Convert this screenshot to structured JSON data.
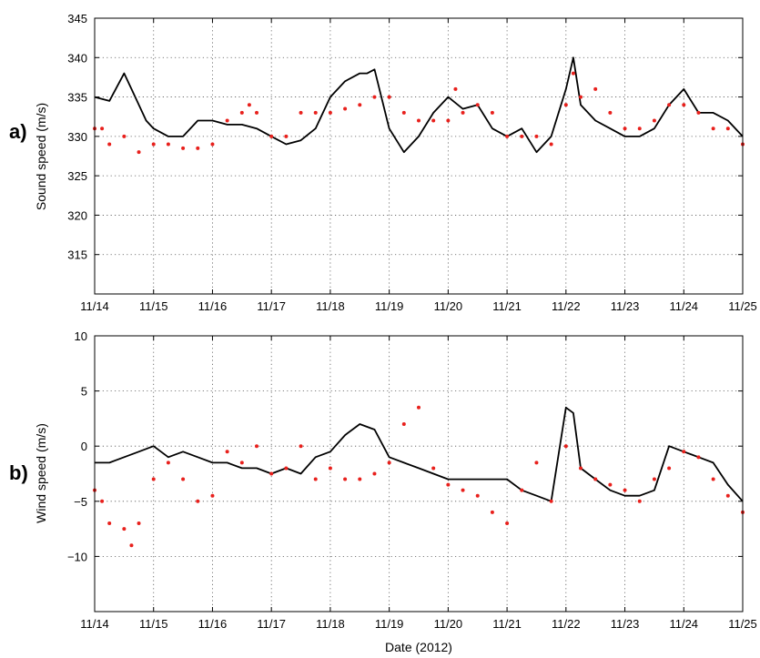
{
  "colors": {
    "black_series": "#000000",
    "red_series": "#e8201c",
    "grid": "#555555"
  },
  "xlabel": "Date (2012)",
  "chart_data": [
    {
      "type": "line",
      "panel_label": "a)",
      "ylabel": "Sound speed (m/s)",
      "xlabel": "",
      "x_ticks": [
        "11/14",
        "11/15",
        "11/16",
        "11/17",
        "11/18",
        "11/19",
        "11/20",
        "11/21",
        "11/22",
        "11/23",
        "11/24",
        "11/25"
      ],
      "xlim": [
        "11/14",
        "11/25"
      ],
      "ylim": [
        310,
        345
      ],
      "y_ticks": [
        315,
        320,
        325,
        330,
        335,
        340,
        345
      ],
      "grid": true,
      "series": [
        {
          "color": "#000000",
          "style": "line",
          "x": [
            "11/14",
            "11/14 06:00",
            "11/14 12:00",
            "11/14 15:00",
            "11/14 21:00",
            "11/15 00:00",
            "11/15 06:00",
            "11/15 12:00",
            "11/15 18:00",
            "11/16 00:00",
            "11/16 06:00",
            "11/16 12:00",
            "11/16 18:00",
            "11/17 00:00",
            "11/17 06:00",
            "11/17 12:00",
            "11/17 18:00",
            "11/18 00:00",
            "11/18 06:00",
            "11/18 12:00",
            "11/18 15:00",
            "11/18 18:00",
            "11/19 00:00",
            "11/19 06:00",
            "11/19 12:00",
            "11/19 18:00",
            "11/20 00:00",
            "11/20 06:00",
            "11/20 12:00",
            "11/20 18:00",
            "11/21 00:00",
            "11/21 06:00",
            "11/21 12:00",
            "11/21 18:00",
            "11/22 00:00",
            "11/22 03:00",
            "11/22 06:00",
            "11/22 12:00",
            "11/22 18:00",
            "11/23 00:00",
            "11/23 06:00",
            "11/23 12:00",
            "11/23 18:00",
            "11/24 00:00",
            "11/24 06:00",
            "11/24 12:00",
            "11/24 18:00",
            "11/25 00:00"
          ],
          "y": [
            335,
            334.5,
            338,
            336,
            332,
            331,
            330,
            330,
            332,
            332,
            331.5,
            331.5,
            331,
            330,
            329,
            329.5,
            331,
            335,
            337,
            338,
            338,
            338.5,
            331,
            328,
            330,
            333,
            335,
            333.5,
            334,
            331,
            330,
            331,
            328,
            330,
            336,
            340,
            334,
            332,
            331,
            330,
            330,
            331,
            334,
            336,
            333,
            333,
            332,
            330
          ]
        },
        {
          "color": "#e8201c",
          "style": "dots",
          "x": [
            "11/14",
            "11/14 03:00",
            "11/14 06:00",
            "11/14 12:00",
            "11/14 18:00",
            "11/15 00:00",
            "11/15 06:00",
            "11/15 12:00",
            "11/15 18:00",
            "11/16 00:00",
            "11/16 06:00",
            "11/16 12:00",
            "11/16 15:00",
            "11/16 18:00",
            "11/17 00:00",
            "11/17 06:00",
            "11/17 12:00",
            "11/17 18:00",
            "11/18 00:00",
            "11/18 06:00",
            "11/18 12:00",
            "11/18 18:00",
            "11/19 00:00",
            "11/19 06:00",
            "11/19 12:00",
            "11/19 18:00",
            "11/20 00:00",
            "11/20 03:00",
            "11/20 06:00",
            "11/20 12:00",
            "11/20 18:00",
            "11/21 00:00",
            "11/21 06:00",
            "11/21 12:00",
            "11/21 18:00",
            "11/22 00:00",
            "11/22 03:00",
            "11/22 06:00",
            "11/22 12:00",
            "11/22 18:00",
            "11/23 00:00",
            "11/23 06:00",
            "11/23 12:00",
            "11/23 18:00",
            "11/24 00:00",
            "11/24 06:00",
            "11/24 12:00",
            "11/24 18:00",
            "11/25 00:00"
          ],
          "y": [
            331,
            331,
            329,
            330,
            328,
            329,
            329,
            328.5,
            328.5,
            329,
            332,
            333,
            334,
            333,
            330,
            330,
            333,
            333,
            333,
            333.5,
            334,
            335,
            335,
            333,
            332,
            332,
            332,
            336,
            333,
            334,
            333,
            330,
            330,
            330,
            329,
            334,
            338,
            335,
            336,
            333,
            331,
            331,
            332,
            334,
            334,
            333,
            331,
            331,
            329
          ]
        }
      ]
    },
    {
      "type": "line",
      "panel_label": "b)",
      "ylabel": "Wind speed (m/s)",
      "xlabel": "Date (2012)",
      "x_ticks": [
        "11/14",
        "11/15",
        "11/16",
        "11/17",
        "11/18",
        "11/19",
        "11/20",
        "11/21",
        "11/22",
        "11/23",
        "11/24",
        "11/25"
      ],
      "xlim": [
        "11/14",
        "11/25"
      ],
      "ylim": [
        -15,
        10
      ],
      "y_ticks": [
        "−10",
        "−5",
        "0",
        "5",
        "10"
      ],
      "y_tick_values": [
        -10,
        -5,
        0,
        5,
        10
      ],
      "grid": true,
      "series": [
        {
          "color": "#000000",
          "style": "line",
          "x": [
            "11/14",
            "11/14 06:00",
            "11/14 12:00",
            "11/14 18:00",
            "11/15 00:00",
            "11/15 06:00",
            "11/15 12:00",
            "11/15 18:00",
            "11/16 00:00",
            "11/16 06:00",
            "11/16 12:00",
            "11/16 18:00",
            "11/17 00:00",
            "11/17 06:00",
            "11/17 12:00",
            "11/17 18:00",
            "11/18 00:00",
            "11/18 06:00",
            "11/18 12:00",
            "11/18 18:00",
            "11/19 00:00",
            "11/19 06:00",
            "11/19 12:00",
            "11/19 18:00",
            "11/20 00:00",
            "11/20 06:00",
            "11/20 12:00",
            "11/20 18:00",
            "11/21 00:00",
            "11/21 06:00",
            "11/21 12:00",
            "11/21 18:00",
            "11/22 00:00",
            "11/22 03:00",
            "11/22 06:00",
            "11/22 12:00",
            "11/22 18:00",
            "11/23 00:00",
            "11/23 06:00",
            "11/23 12:00",
            "11/23 18:00",
            "11/24 00:00",
            "11/24 06:00",
            "11/24 12:00",
            "11/24 18:00",
            "11/25 00:00"
          ],
          "y": [
            -1.5,
            -1.5,
            -1,
            -0.5,
            0,
            -1,
            -0.5,
            -1,
            -1.5,
            -1.5,
            -2,
            -2,
            -2.5,
            -2,
            -2.5,
            -1,
            -0.5,
            1,
            2,
            1.5,
            -1,
            -1.5,
            -2,
            -2.5,
            -3,
            -3,
            -3,
            -3,
            -3,
            -4,
            -4.5,
            -5,
            3.5,
            3,
            -2,
            -3,
            -4,
            -4.5,
            -4.5,
            -4,
            0,
            -0.5,
            -1,
            -1.5,
            -3.5,
            -5
          ]
        },
        {
          "color": "#e8201c",
          "style": "dots",
          "x": [
            "11/14",
            "11/14 03:00",
            "11/14 06:00",
            "11/14 12:00",
            "11/14 15:00",
            "11/14 18:00",
            "11/15 00:00",
            "11/15 06:00",
            "11/15 12:00",
            "11/15 18:00",
            "11/16 00:00",
            "11/16 06:00",
            "11/16 12:00",
            "11/16 18:00",
            "11/17 00:00",
            "11/17 06:00",
            "11/17 12:00",
            "11/17 18:00",
            "11/18 00:00",
            "11/18 06:00",
            "11/18 12:00",
            "11/18 18:00",
            "11/19 00:00",
            "11/19 06:00",
            "11/19 12:00",
            "11/19 18:00",
            "11/20 00:00",
            "11/20 06:00",
            "11/20 12:00",
            "11/20 18:00",
            "11/21 00:00",
            "11/21 06:00",
            "11/21 12:00",
            "11/21 18:00",
            "11/22 00:00",
            "11/22 06:00",
            "11/22 12:00",
            "11/22 18:00",
            "11/23 00:00",
            "11/23 06:00",
            "11/23 12:00",
            "11/23 18:00",
            "11/24 00:00",
            "11/24 06:00",
            "11/24 12:00",
            "11/24 18:00",
            "11/25 00:00"
          ],
          "y": [
            -4,
            -5,
            -7,
            -7.5,
            -9,
            -7,
            -3,
            -1.5,
            -3,
            -5,
            -4.5,
            -0.5,
            -1.5,
            0,
            -2.5,
            -2,
            0,
            -3,
            -2,
            -3,
            -3,
            -2.5,
            -1.5,
            2,
            3.5,
            -2,
            -3.5,
            -4,
            -4.5,
            -6,
            -7,
            -4,
            -1.5,
            -5,
            0,
            -2,
            -3,
            -3.5,
            -4,
            -5,
            -3,
            -2,
            -0.5,
            -1,
            -3,
            -4.5,
            -6
          ]
        }
      ]
    }
  ]
}
